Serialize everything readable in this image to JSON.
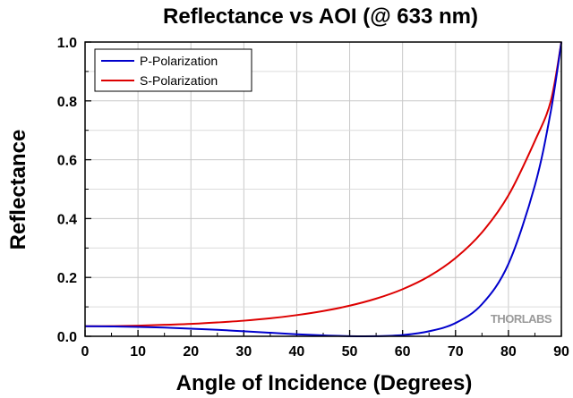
{
  "chart_data": {
    "type": "line",
    "title": "Reflectance vs AOI (@ 633 nm)",
    "xlabel": "Angle of Incidence (Degrees)",
    "ylabel": "Reflectance",
    "xlim": [
      0,
      90
    ],
    "ylim": [
      0,
      1.0
    ],
    "x_ticks": [
      "0",
      "10",
      "20",
      "30",
      "40",
      "50",
      "60",
      "70",
      "80",
      "90"
    ],
    "y_ticks": [
      "0.0",
      "0.2",
      "0.4",
      "0.6",
      "0.8",
      "1.0"
    ],
    "grid": true,
    "legend_position": "top-left",
    "x": [
      0,
      5,
      10,
      15,
      20,
      25,
      30,
      35,
      40,
      45,
      50,
      55,
      60,
      65,
      70,
      75,
      80,
      85,
      88,
      90
    ],
    "series": [
      {
        "name": "P-Polarization",
        "color": "#0000cc",
        "values": [
          0.034,
          0.0335,
          0.032,
          0.0295,
          0.026,
          0.022,
          0.017,
          0.012,
          0.007,
          0.003,
          0.0005,
          0.0003,
          0.004,
          0.017,
          0.045,
          0.109,
          0.246,
          0.513,
          0.764,
          1.0
        ]
      },
      {
        "name": "S-Polarization",
        "color": "#dd0000",
        "values": [
          0.034,
          0.0345,
          0.036,
          0.039,
          0.042,
          0.047,
          0.053,
          0.061,
          0.072,
          0.086,
          0.104,
          0.128,
          0.16,
          0.204,
          0.266,
          0.353,
          0.479,
          0.664,
          0.799,
          1.0
        ]
      }
    ]
  },
  "watermark": "THORLABS"
}
